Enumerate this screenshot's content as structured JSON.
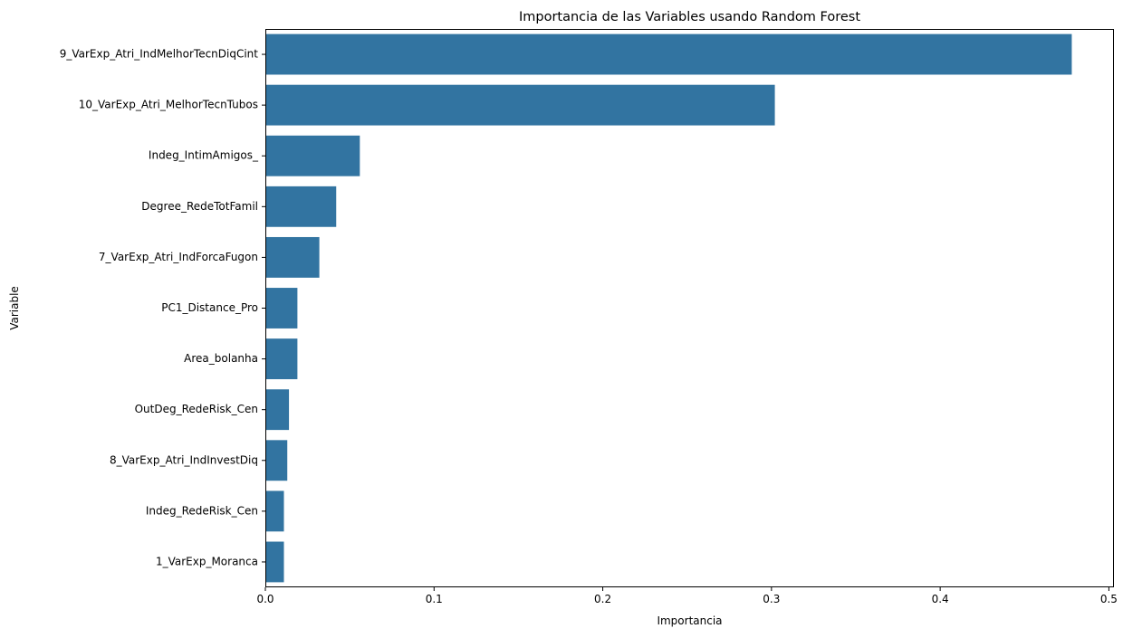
{
  "chart_data": {
    "type": "bar",
    "orientation": "horizontal",
    "title": "Importancia de las Variables usando Random Forest",
    "xlabel": "Importancia",
    "ylabel": "Variable",
    "xlim": [
      0,
      0.503
    ],
    "xticks": [
      0.0,
      0.1,
      0.2,
      0.3,
      0.4,
      0.5
    ],
    "xtick_labels": [
      "0.0",
      "0.1",
      "0.2",
      "0.3",
      "0.4",
      "0.5"
    ],
    "grid": false,
    "bar_color": "#3274a1",
    "categories": [
      "9_VarExp_Atri_IndMelhorTecnDiqCint",
      "10_VarExp_Atri_MelhorTecnTubos",
      "Indeg_IntimAmigos_",
      "Degree_RedeTotFamil",
      "7_VarExp_Atri_IndForcaFugon",
      "PC1_Distance_Pro",
      "Area_bolanha",
      "OutDeg_RedeRisk_Cen",
      "8_VarExp_Atri_IndInvestDiq",
      "Indeg_RedeRisk_Cen",
      "1_VarExp_Moranca"
    ],
    "values": [
      0.478,
      0.302,
      0.056,
      0.042,
      0.032,
      0.019,
      0.019,
      0.014,
      0.013,
      0.011,
      0.011
    ]
  }
}
